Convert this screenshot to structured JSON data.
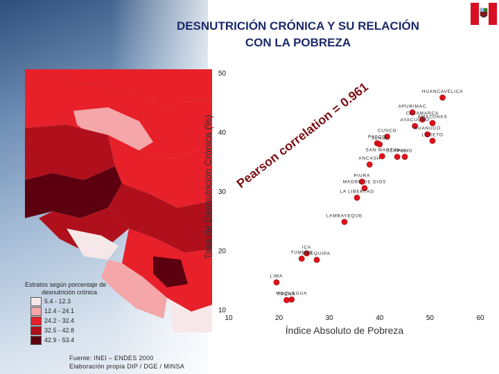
{
  "title_line1": "DESNUTRICIÓN CRÓNICA Y SU RELACIÓN",
  "title_line2": "CON LA POBREZA",
  "map_legend": {
    "title_line1": "Estratos según porcentaje de",
    "title_line2": "desnutrición crónica",
    "items": [
      {
        "label": "5.4 - 12.3",
        "color": "#f6e8e8"
      },
      {
        "label": "12.4 - 24.1",
        "color": "#f4a6a8"
      },
      {
        "label": "24.2 - 32.4",
        "color": "#e8202a"
      },
      {
        "label": "32.5 - 42.8",
        "color": "#b0101c"
      },
      {
        "label": "42.9 - 53.4",
        "color": "#5c0010"
      }
    ]
  },
  "source": "Fuente: INEI – ENDES 2000",
  "credit": "Elaboración propia DIP / DGE / MINSA",
  "chart_data": {
    "type": "scatter",
    "xlabel": "Índice Absoluto de Pobreza",
    "ylabel": "Tasa de Desnutrición Crónica (%)",
    "xlim": [
      10,
      60
    ],
    "ylim": [
      10,
      50
    ],
    "xticks": [
      10,
      20,
      30,
      40,
      50,
      60
    ],
    "yticks": [
      10,
      20,
      30,
      40,
      50
    ],
    "annotation": "Pearson correlation = 0.961",
    "marker_color": "#e3101a",
    "points": [
      {
        "label": "HUANCAVELICA",
        "x": 52.5,
        "y": 45.8
      },
      {
        "label": "APURIMAC",
        "x": 46.5,
        "y": 43.3
      },
      {
        "label": "CAJAMARCA",
        "x": 48.5,
        "y": 42.1
      },
      {
        "label": "AMAZONAS",
        "x": 50.5,
        "y": 41.5
      },
      {
        "label": "AYACUCHO",
        "x": 47.0,
        "y": 41.0
      },
      {
        "label": "HUANUCO",
        "x": 49.5,
        "y": 39.6
      },
      {
        "label": "LORETO",
        "x": 50.5,
        "y": 38.5
      },
      {
        "label": "CUSCO",
        "x": 41.5,
        "y": 39.2
      },
      {
        "label": "PASCO",
        "x": 39.5,
        "y": 38.1
      },
      {
        "label": "JUNIN",
        "x": 40.0,
        "y": 37.9
      },
      {
        "label": "SAN MARTIN",
        "x": 40.5,
        "y": 35.9
      },
      {
        "label": "UCAYALI",
        "x": 43.5,
        "y": 35.8
      },
      {
        "label": "PUNO",
        "x": 45.0,
        "y": 35.8
      },
      {
        "label": "ANCASH",
        "x": 38.0,
        "y": 34.5
      },
      {
        "label": "PIURA",
        "x": 36.5,
        "y": 31.6
      },
      {
        "label": "MADRE DE DIOS",
        "x": 37.0,
        "y": 30.5
      },
      {
        "label": "LA LIBERTAD",
        "x": 35.5,
        "y": 28.9
      },
      {
        "label": "LAMBAYEQUE",
        "x": 33.0,
        "y": 24.8
      },
      {
        "label": "ICA",
        "x": 25.5,
        "y": 19.5
      },
      {
        "label": "TUMBES",
        "x": 24.5,
        "y": 18.6
      },
      {
        "label": "AREQUIPA",
        "x": 27.5,
        "y": 18.4
      },
      {
        "label": "LIMA",
        "x": 19.5,
        "y": 14.6
      },
      {
        "label": "TACNA",
        "x": 21.5,
        "y": 11.6
      },
      {
        "label": "MOQUEGUA",
        "x": 22.5,
        "y": 11.7
      }
    ]
  }
}
